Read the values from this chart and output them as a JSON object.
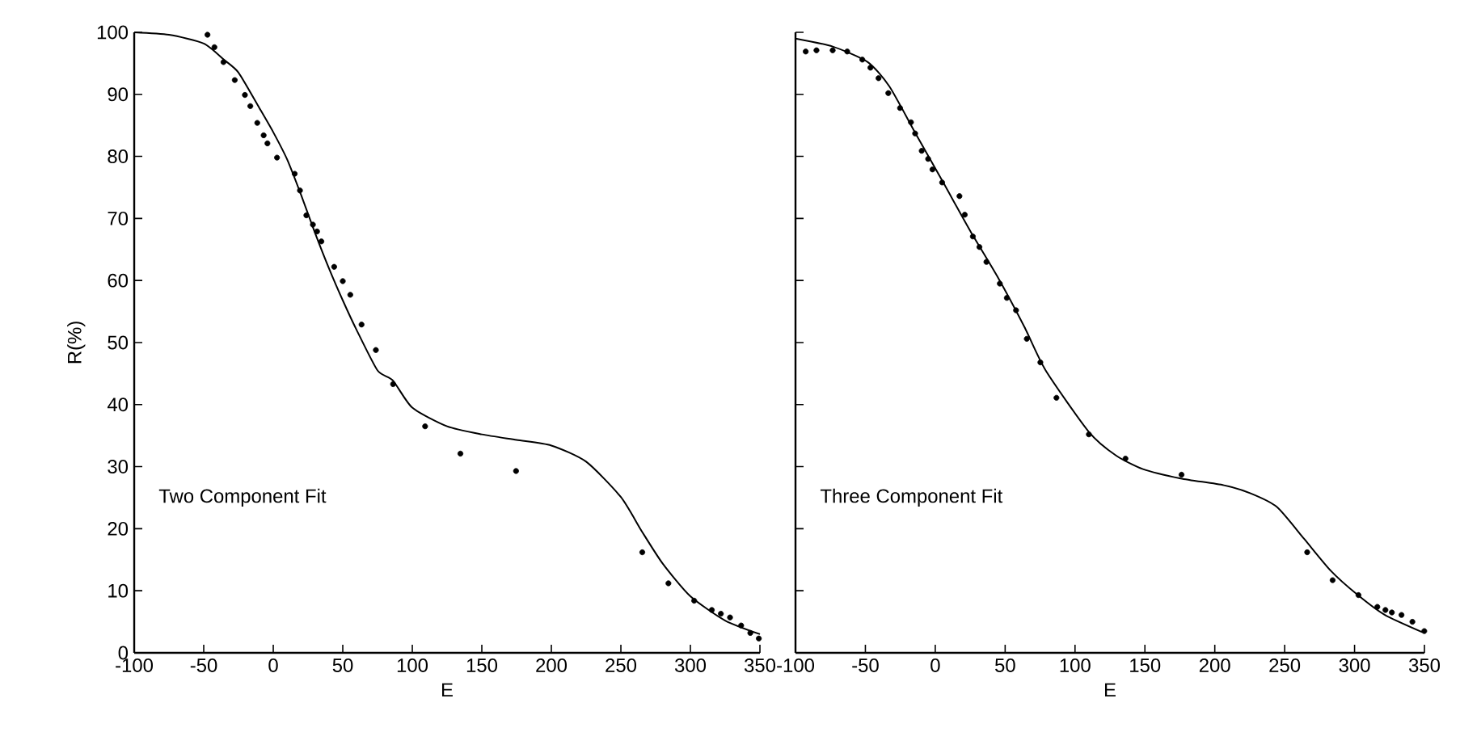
{
  "chart_data": [
    {
      "type": "scatter",
      "xlabel": "E",
      "ylabel": "R(%)",
      "xlim": [
        -100,
        350
      ],
      "ylim": [
        0,
        100
      ],
      "xticks": [
        -100,
        -50,
        0,
        50,
        100,
        150,
        200,
        250,
        300,
        350
      ],
      "yticks": [
        0,
        10,
        20,
        30,
        40,
        50,
        60,
        70,
        80,
        90,
        100
      ],
      "annotations": [
        "Two Component Fit"
      ],
      "series": [
        {
          "type": "scatter",
          "marker": "circle",
          "color": "#000000",
          "x": [
            -47.3,
            -42.3,
            -35.8,
            -27.7,
            -20.4,
            -16.5,
            -11.5,
            -6.9,
            -4.2,
            2.7,
            15.4,
            19.2,
            23.8,
            28.5,
            31.5,
            34.6,
            43.8,
            50,
            55.4,
            63.5,
            73.8,
            86.2,
            109.2,
            134.6,
            174.6,
            265.4,
            284.2,
            302.7,
            315.4,
            321.9,
            328.5,
            336.5,
            343.1,
            349.2
          ],
          "values": [
            99.6,
            97.6,
            95.2,
            92.3,
            89.9,
            88.1,
            85.4,
            83.4,
            82.1,
            79.8,
            77.2,
            74.5,
            70.5,
            69.0,
            67.9,
            66.3,
            62.2,
            59.9,
            57.7,
            52.9,
            48.8,
            43.3,
            36.5,
            32.1,
            29.3,
            16.2,
            11.2,
            8.4,
            6.9,
            6.3,
            5.7,
            4.4,
            3.2,
            2.3
          ]
        },
        {
          "type": "line",
          "marker": "none",
          "color": "#000000",
          "x": [
            -100,
            -75,
            -50,
            -35,
            -25,
            -10,
            0,
            10,
            20,
            30,
            40,
            50,
            60,
            75,
            86,
            100,
            125,
            150,
            175,
            200,
            225,
            250,
            265,
            280,
            300,
            325,
            350
          ],
          "values": [
            100,
            99.6,
            98.2,
            95.5,
            93.5,
            87.8,
            83.9,
            79.5,
            73.8,
            67.7,
            62,
            56.8,
            52,
            45.5,
            43.9,
            39.5,
            36.5,
            35.2,
            34.3,
            33.4,
            30.8,
            25.1,
            19.6,
            14.4,
            9.1,
            5.2,
            3.0
          ]
        }
      ]
    },
    {
      "type": "scatter",
      "xlabel": "E",
      "xlim": [
        -100,
        350
      ],
      "ylim": [
        0,
        100
      ],
      "xticks": [
        -100,
        -50,
        0,
        50,
        100,
        150,
        200,
        250,
        300,
        350
      ],
      "yticks": [
        {
          "value": 0,
          "label": null
        },
        {
          "value": 10,
          "label": null
        },
        {
          "value": 20,
          "label": null
        },
        {
          "value": 30,
          "label": null
        },
        {
          "value": 40,
          "label": null
        },
        {
          "value": 50,
          "label": null
        },
        {
          "value": 60,
          "label": null
        },
        {
          "value": 70,
          "label": null
        },
        {
          "value": 80,
          "label": null
        },
        {
          "value": 90,
          "label": null
        },
        {
          "value": 100,
          "label": null
        }
      ],
      "tick_labels": "x",
      "annotations": [
        "Three Component Fit"
      ],
      "series": [
        {
          "type": "scatter",
          "marker": "circle",
          "color": "#000000",
          "x": [
            -92.7,
            -85,
            -73.4,
            -63,
            -52.2,
            -46.4,
            -40.6,
            -33.6,
            -25.2,
            -17.4,
            -14.4,
            -9.7,
            -5.1,
            -2,
            4.9,
            17.3,
            21.1,
            26.9,
            31.6,
            36.6,
            46.2,
            51.2,
            57.8,
            65.5,
            75.2,
            86.7,
            109.9,
            136.1,
            176.2,
            266.1,
            284.3,
            302.8,
            316.3,
            322.1,
            326.7,
            333.6,
            341.4,
            349.9
          ],
          "values": [
            96.9,
            97.1,
            97.1,
            96.9,
            95.6,
            94.3,
            92.6,
            90.2,
            87.8,
            85.5,
            83.7,
            80.9,
            79.6,
            77.9,
            75.8,
            73.6,
            70.6,
            67.1,
            65.4,
            63,
            59.5,
            57.2,
            55.2,
            50.6,
            46.8,
            41.1,
            35.2,
            31.3,
            28.7,
            16.2,
            11.7,
            9.3,
            7.4,
            6.9,
            6.5,
            6.1,
            5.0,
            3.5
          ]
        },
        {
          "type": "line",
          "marker": "none",
          "color": "#000000",
          "x": [
            -100,
            -73.4,
            -48.3,
            -32.9,
            -13.6,
            5.7,
            25,
            44.3,
            63.6,
            79,
            109.9,
            129.3,
            148.6,
            175.6,
            206.5,
            225.6,
            244.5,
            263.8,
            283.1,
            302.4,
            321.7,
            348.7
          ],
          "values": [
            99,
            97.7,
            95.2,
            91.3,
            83.5,
            75.8,
            68,
            60.7,
            52.6,
            45.5,
            35.6,
            31.8,
            29.6,
            28.1,
            27,
            25.7,
            23.5,
            18.4,
            13.2,
            9.3,
            6.1,
            3.3
          ]
        }
      ]
    }
  ]
}
